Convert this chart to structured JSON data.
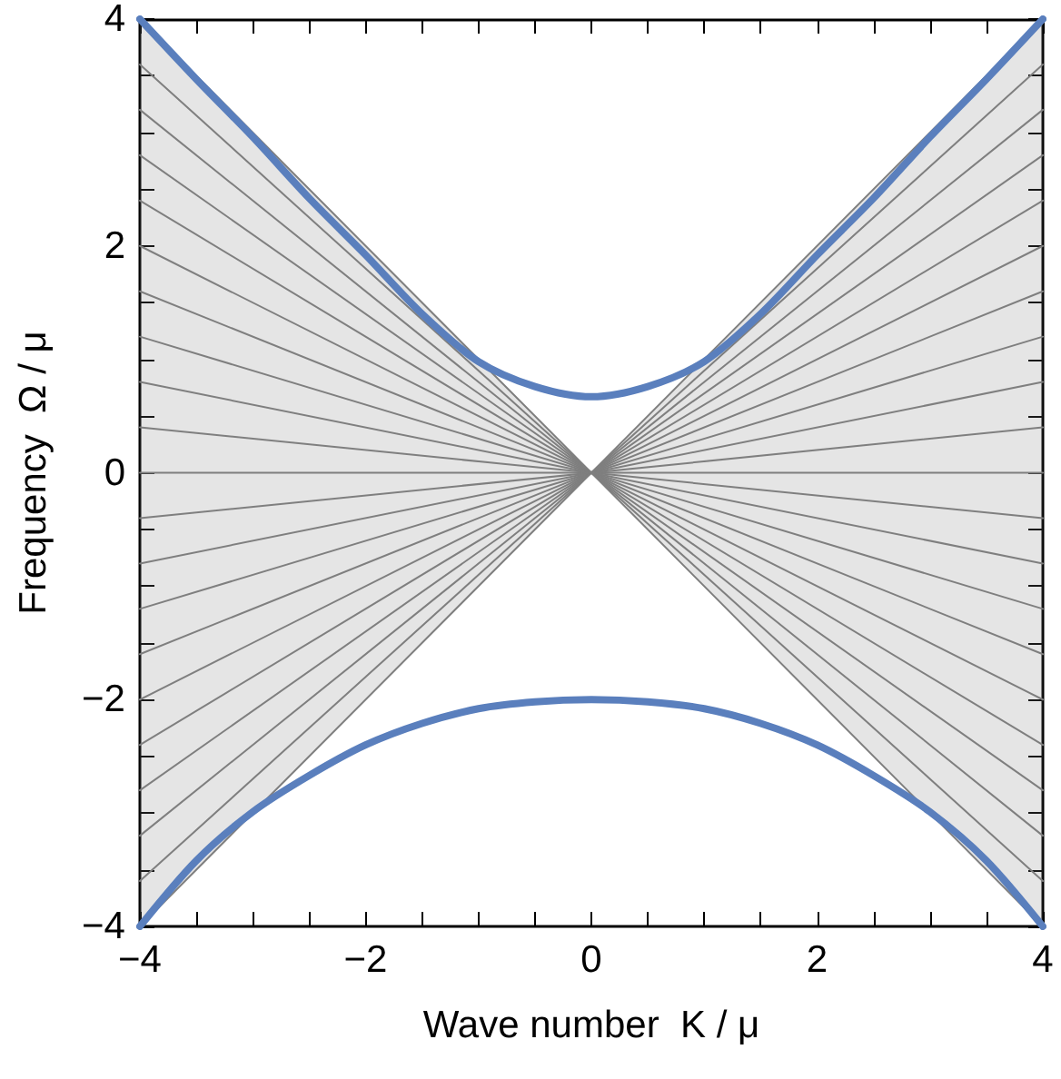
{
  "chart_data": {
    "type": "line",
    "xlabel": "Wave number  K / μ",
    "ylabel": "Frequency  Ω / μ",
    "xlim": [
      -4,
      4
    ],
    "ylim": [
      -4,
      4
    ],
    "xticks": [
      -4,
      {
        "value": -3.5,
        "label": null
      },
      {
        "value": -3,
        "label": null
      },
      {
        "value": -2.5,
        "label": null
      },
      -2,
      {
        "value": -1.5,
        "label": null
      },
      {
        "value": -1,
        "label": null
      },
      {
        "value": -0.5,
        "label": null
      },
      0,
      {
        "value": 0.5,
        "label": null
      },
      {
        "value": 1,
        "label": null
      },
      {
        "value": 1.5,
        "label": null
      },
      2,
      {
        "value": 2.5,
        "label": null
      },
      {
        "value": 3,
        "label": null
      },
      {
        "value": 3.5,
        "label": null
      },
      4
    ],
    "yticks": [
      -4,
      {
        "value": -3.5,
        "label": null
      },
      {
        "value": -3,
        "label": null
      },
      {
        "value": -2.5,
        "label": null
      },
      -2,
      {
        "value": -1.5,
        "label": null
      },
      {
        "value": -1,
        "label": null
      },
      {
        "value": -0.5,
        "label": null
      },
      0,
      {
        "value": 0.5,
        "label": null
      },
      {
        "value": 1,
        "label": null
      },
      {
        "value": 1.5,
        "label": null
      },
      2,
      {
        "value": 2.5,
        "label": null
      },
      {
        "value": 3,
        "label": null
      },
      {
        "value": 3.5,
        "label": null
      },
      4
    ],
    "grid": false,
    "marker": "none",
    "series": [
      {
        "color": "#7f7f7f",
        "x": [
          -4,
          0,
          4
        ],
        "values": [
          0,
          0,
          0
        ],
        "lower": [
          -4,
          0,
          -4
        ],
        "upper": [
          4,
          0,
          4
        ]
      },
      {
        "color": "#7f7f7f",
        "x": [
          -4,
          4
        ],
        "values": [
          -0.4,
          0.4
        ]
      },
      {
        "color": "#7f7f7f",
        "x": [
          -4,
          4
        ],
        "values": [
          -0.8,
          0.8
        ]
      },
      {
        "color": "#7f7f7f",
        "x": [
          -4,
          4
        ],
        "values": [
          -1.2,
          1.2
        ]
      },
      {
        "color": "#7f7f7f",
        "x": [
          -4,
          4
        ],
        "values": [
          -1.6,
          1.6
        ]
      },
      {
        "color": "#7f7f7f",
        "x": [
          -4,
          4
        ],
        "values": [
          -2,
          2
        ]
      },
      {
        "color": "#7f7f7f",
        "x": [
          -4,
          4
        ],
        "values": [
          -2.4,
          2.4
        ]
      },
      {
        "color": "#7f7f7f",
        "x": [
          -4,
          4
        ],
        "values": [
          -2.8,
          2.8
        ]
      },
      {
        "color": "#7f7f7f",
        "x": [
          -4,
          4
        ],
        "values": [
          -3.2,
          3.2
        ]
      },
      {
        "color": "#7f7f7f",
        "x": [
          -4,
          4
        ],
        "values": [
          -3.6,
          3.6
        ]
      },
      {
        "color": "#7f7f7f",
        "x": [
          -4,
          4
        ],
        "values": [
          -4,
          4
        ]
      },
      {
        "color": "#7f7f7f",
        "x": [
          -4,
          4
        ],
        "values": [
          0.4,
          -0.4
        ]
      },
      {
        "color": "#7f7f7f",
        "x": [
          -4,
          4
        ],
        "values": [
          0.8,
          -0.8
        ]
      },
      {
        "color": "#7f7f7f",
        "x": [
          -4,
          4
        ],
        "values": [
          1.2,
          -1.2
        ]
      },
      {
        "color": "#7f7f7f",
        "x": [
          -4,
          4
        ],
        "values": [
          1.6,
          -1.6
        ]
      },
      {
        "color": "#7f7f7f",
        "x": [
          -4,
          4
        ],
        "values": [
          2,
          -2
        ]
      },
      {
        "color": "#7f7f7f",
        "x": [
          -4,
          4
        ],
        "values": [
          2.4,
          -2.4
        ]
      },
      {
        "color": "#7f7f7f",
        "x": [
          -4,
          4
        ],
        "values": [
          2.8,
          -2.8
        ]
      },
      {
        "color": "#7f7f7f",
        "x": [
          -4,
          4
        ],
        "values": [
          3.2,
          -3.2
        ]
      },
      {
        "color": "#7f7f7f",
        "x": [
          -4,
          4
        ],
        "values": [
          3.6,
          -3.6
        ]
      },
      {
        "color": "#7f7f7f",
        "x": [
          -4,
          4
        ],
        "values": [
          4,
          -4
        ]
      },
      {
        "color": "#5a7fbd",
        "x": [
          -4,
          -3.5,
          -3,
          -2.5,
          -2,
          -1.5,
          -1,
          -0.5,
          0,
          0.5,
          1,
          1.5,
          2,
          2.5,
          3,
          3.5,
          4
        ],
        "values": [
          4,
          3.47,
          2.96,
          2.42,
          1.92,
          1.4,
          0.98,
          0.76,
          0.67,
          0.76,
          0.98,
          1.4,
          1.92,
          2.42,
          2.96,
          3.47,
          4
        ]
      },
      {
        "color": "#5a7fbd",
        "x": [
          -4,
          -3.5,
          -3,
          -2.5,
          -2,
          -1.5,
          -1,
          -0.5,
          0,
          0.5,
          1,
          1.5,
          2,
          2.5,
          3,
          3.5,
          4
        ],
        "values": [
          -4,
          -3.42,
          -2.99,
          -2.67,
          -2.4,
          -2.21,
          -2.08,
          -2.02,
          -2,
          -2.02,
          -2.08,
          -2.21,
          -2.4,
          -2.67,
          -2.99,
          -3.42,
          -4
        ]
      }
    ]
  }
}
